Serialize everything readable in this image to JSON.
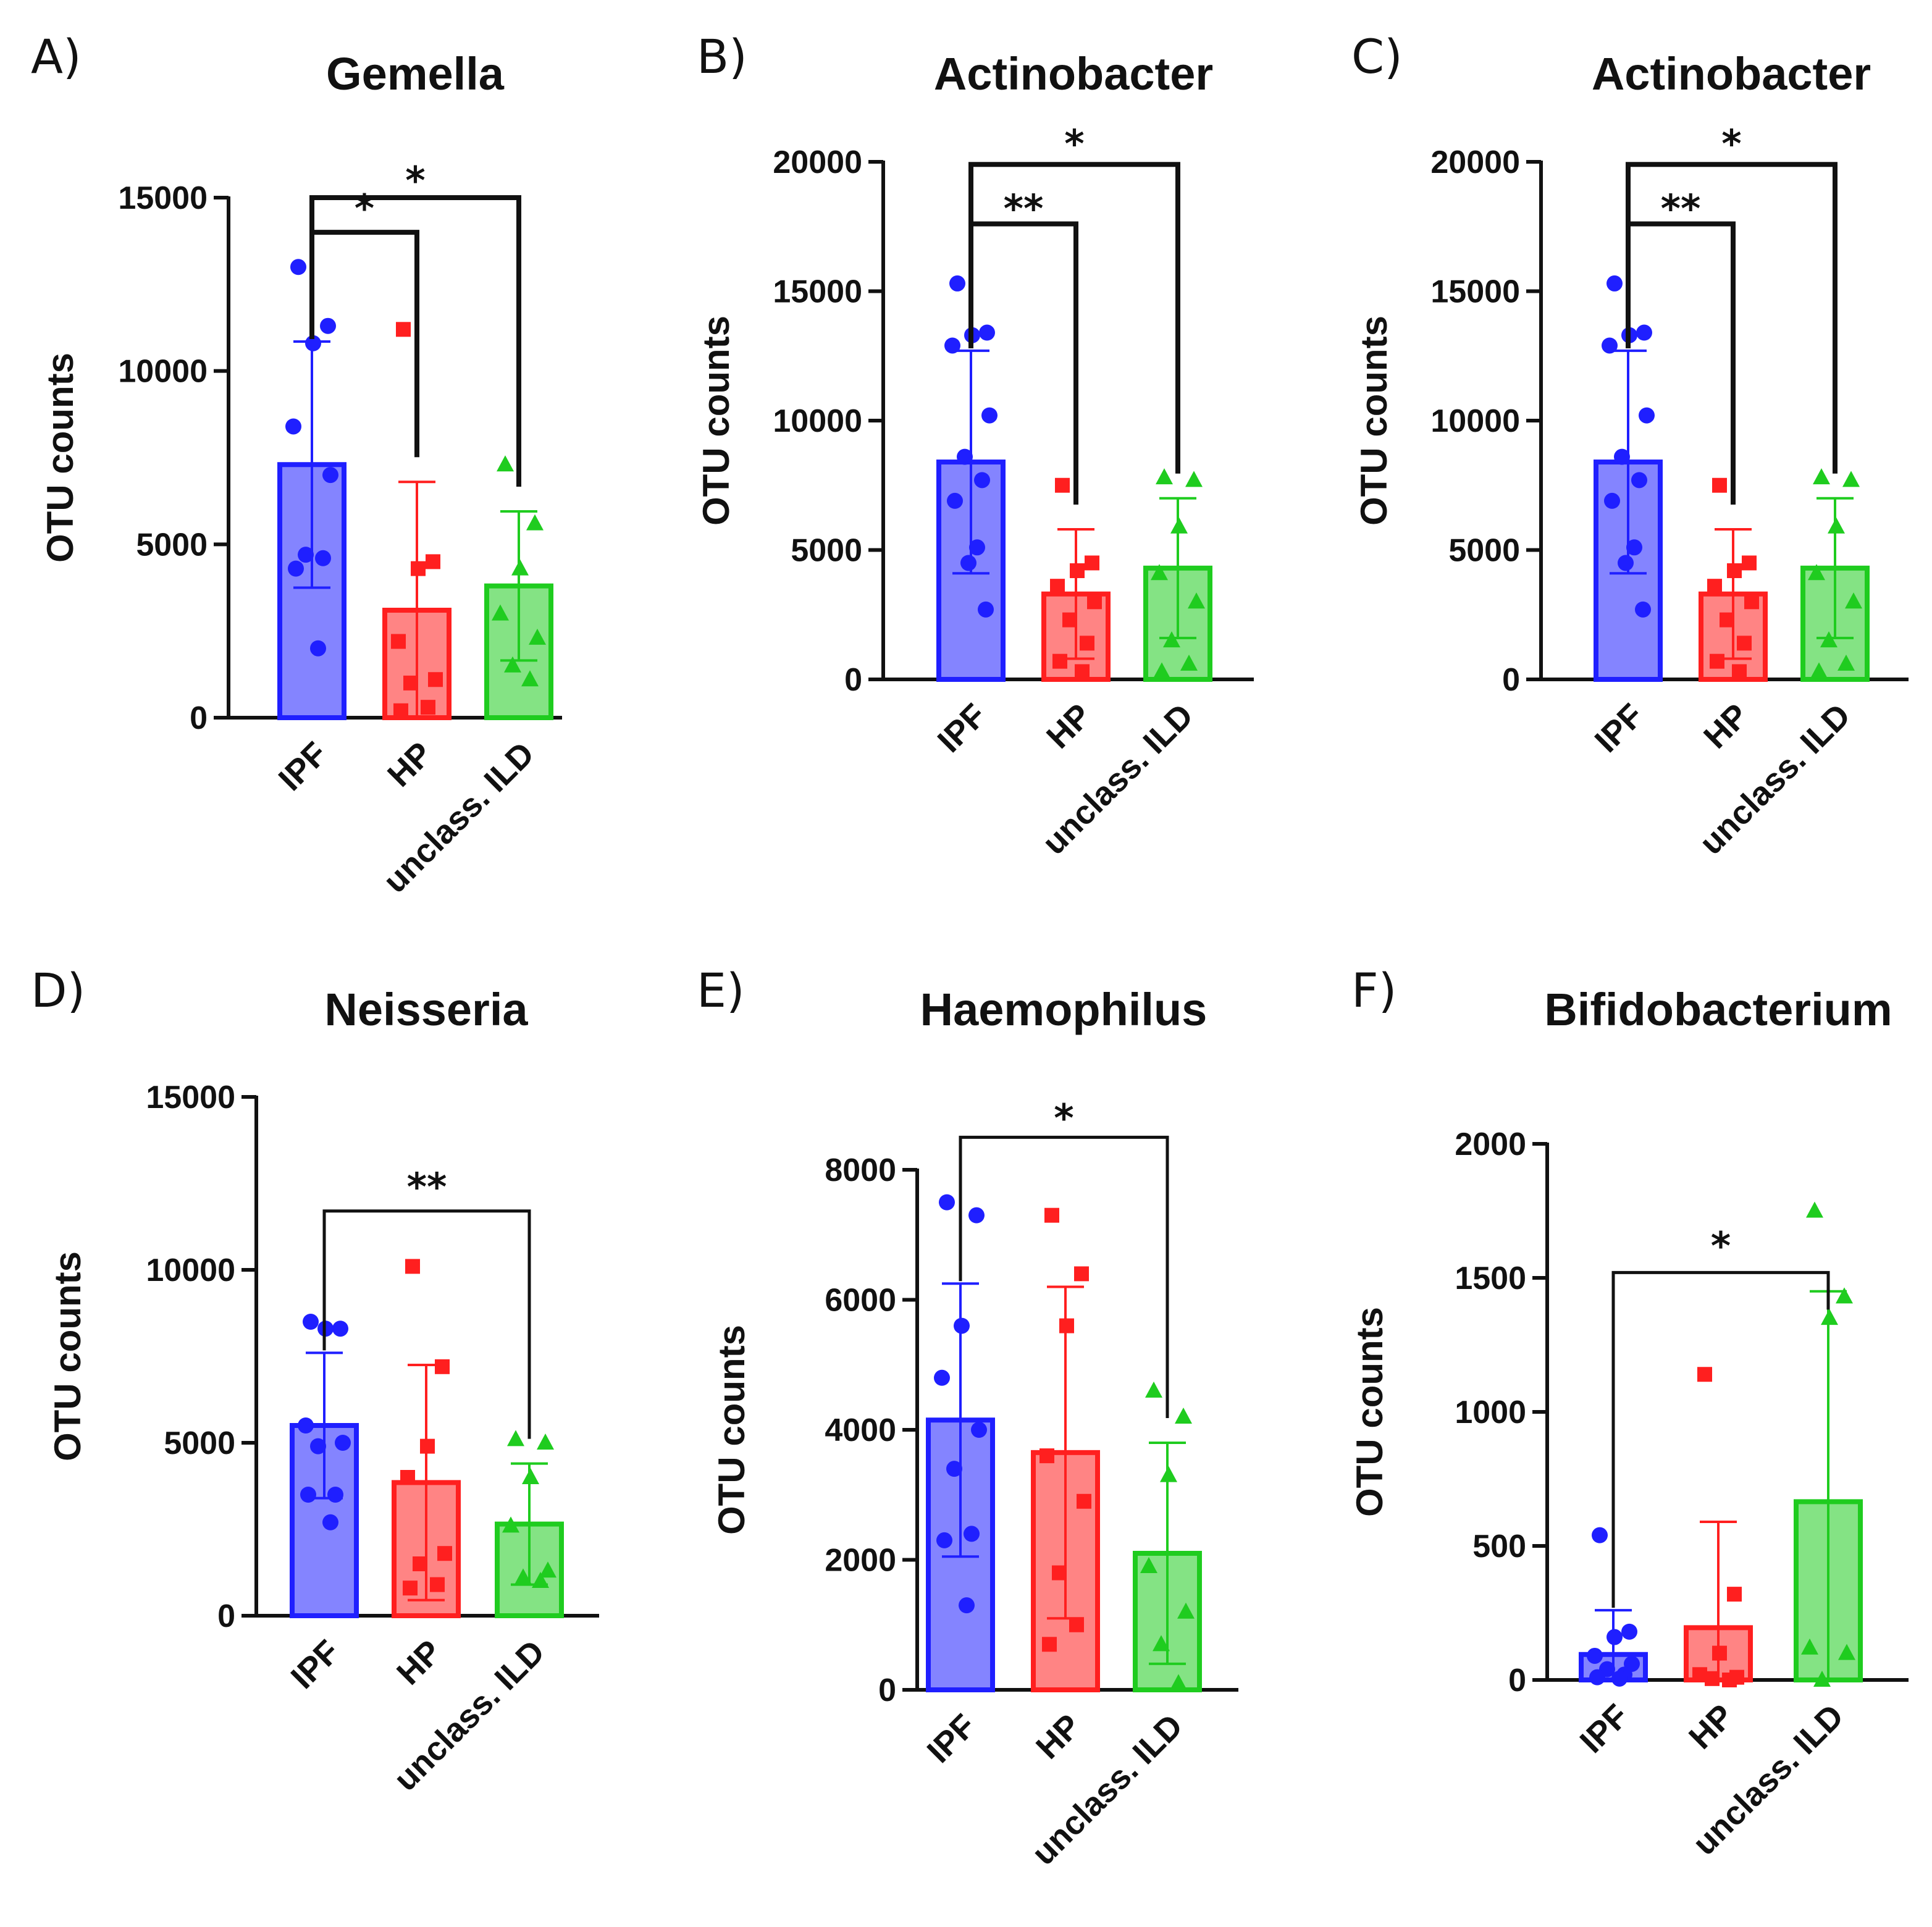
{
  "figure": {
    "colors": {
      "IPF": "#1f1fff",
      "HP": "#ff1f1f",
      "unclass. ILD": "#1fcc1f"
    },
    "marker_shapes": {
      "IPF": "circle",
      "HP": "square",
      "unclass. ILD": "triangle"
    }
  },
  "chart_data": [
    {
      "panel": "A)",
      "type": "bar",
      "title": "Gemella",
      "ylabel": "OTU counts",
      "xlabel": "",
      "categories": [
        "IPF",
        "HP",
        "unclass. ILD"
      ],
      "ylim": [
        0,
        15000
      ],
      "yticks": [
        0,
        5000,
        10000,
        15000
      ],
      "ytick_labels": [
        "0",
        "5000",
        "10000",
        "15000"
      ],
      "series": [
        {
          "name": "IPF",
          "mean": 7300,
          "sd": 3550,
          "points": [
            13000,
            11300,
            10800,
            8400,
            7000,
            4700,
            4600,
            4300,
            2000
          ]
        },
        {
          "name": "HP",
          "mean": 3100,
          "sd": 3700,
          "points": [
            11200,
            4500,
            4300,
            2200,
            1100,
            1000,
            300,
            200
          ]
        },
        {
          "name": "unclass. ILD",
          "mean": 3800,
          "sd": 2150,
          "points": [
            7300,
            5600,
            4300,
            3000,
            2300,
            1500,
            1100
          ]
        }
      ],
      "significance": [
        {
          "from": 0,
          "to": 1,
          "label": "*",
          "ystart": 14500,
          "ybracket": 14000,
          "label_y": 14700
        },
        {
          "from": 0,
          "to": 2,
          "label": "*",
          "ystart": 14800,
          "ybracket": 15000,
          "label_y": 15500
        }
      ]
    },
    {
      "panel": "B)",
      "type": "bar",
      "title": "Actinobacter",
      "ylabel": "OTU counts",
      "xlabel": "",
      "categories": [
        "IPF",
        "HP",
        "unclass. ILD"
      ],
      "ylim": [
        0,
        20000
      ],
      "yticks": [
        0,
        5000,
        10000,
        15000,
        20000
      ],
      "ytick_labels": [
        "0",
        "5000",
        "10000",
        "15000",
        "20000"
      ],
      "series": [
        {
          "name": "IPF",
          "mean": 8400,
          "sd": 4300,
          "points": [
            15300,
            13400,
            13300,
            12900,
            10200,
            8600,
            7700,
            6900,
            5100,
            4500,
            2700
          ]
        },
        {
          "name": "HP",
          "mean": 3300,
          "sd": 2500,
          "points": [
            7500,
            4500,
            4200,
            3600,
            3000,
            2300,
            1400,
            700,
            300
          ]
        },
        {
          "name": "unclass. ILD",
          "mean": 4300,
          "sd": 2700,
          "points": [
            7800,
            7700,
            5900,
            4100,
            3000,
            1500,
            600,
            300
          ]
        }
      ],
      "significance": [
        {
          "from": 0,
          "to": 1,
          "label": "**",
          "ystart": 17600,
          "ybracket": 17600,
          "label_y": 18200
        },
        {
          "from": 0,
          "to": 2,
          "label": "*",
          "ystart": 19900,
          "ybracket": 19900,
          "label_y": 20700
        }
      ]
    },
    {
      "panel": "C)",
      "type": "bar",
      "title": "Actinobacter",
      "ylabel": "OTU counts",
      "xlabel": "",
      "categories": [
        "IPF",
        "HP",
        "unclass. ILD"
      ],
      "ylim": [
        0,
        20000
      ],
      "yticks": [
        0,
        5000,
        10000,
        15000,
        20000
      ],
      "ytick_labels": [
        "0",
        "5000",
        "10000",
        "15000",
        "20000"
      ],
      "series": [
        {
          "name": "IPF",
          "mean": 8400,
          "sd": 4300,
          "points": [
            15300,
            13400,
            13300,
            12900,
            10200,
            8600,
            7700,
            6900,
            5100,
            4500,
            2700
          ]
        },
        {
          "name": "HP",
          "mean": 3300,
          "sd": 2500,
          "points": [
            7500,
            4500,
            4200,
            3600,
            3000,
            2300,
            1400,
            700,
            300
          ]
        },
        {
          "name": "unclass. ILD",
          "mean": 4300,
          "sd": 2700,
          "points": [
            7800,
            7700,
            5900,
            4100,
            3000,
            1500,
            600,
            300
          ]
        }
      ],
      "significance": [
        {
          "from": 0,
          "to": 1,
          "label": "**",
          "ystart": 17600,
          "ybracket": 17600,
          "label_y": 18200
        },
        {
          "from": 0,
          "to": 2,
          "label": "*",
          "ystart": 19900,
          "ybracket": 19900,
          "label_y": 20700
        }
      ]
    },
    {
      "panel": "D)",
      "type": "bar",
      "title": "Neisseria",
      "ylabel": "OTU counts",
      "xlabel": "",
      "categories": [
        "IPF",
        "HP",
        "unclass. ILD"
      ],
      "ylim": [
        0,
        15000
      ],
      "yticks": [
        0,
        5000,
        10000,
        15000
      ],
      "ytick_labels": [
        "0",
        "5000",
        "10000",
        "15000"
      ],
      "series": [
        {
          "name": "IPF",
          "mean": 5500,
          "sd": 2100,
          "points": [
            8500,
            8300,
            8300,
            5500,
            5000,
            4900,
            3500,
            3500,
            2700
          ]
        },
        {
          "name": "HP",
          "mean": 3850,
          "sd": 3400,
          "points": [
            10100,
            7200,
            4900,
            4000,
            1800,
            1500,
            900,
            800
          ]
        },
        {
          "name": "unclass. ILD",
          "mean": 2650,
          "sd": 1750,
          "points": [
            5100,
            5000,
            4000,
            2600,
            1300,
            1100,
            1000
          ]
        }
      ],
      "significance": [
        {
          "from": 0,
          "to": 2,
          "label": "**",
          "ystart": 11700,
          "ybracket": 11700,
          "label_y": 12400
        }
      ]
    },
    {
      "panel": "E)",
      "type": "bar",
      "title": "Haemophilus",
      "ylabel": "OTU counts",
      "xlabel": "",
      "categories": [
        "IPF",
        "HP",
        "unclass. ILD"
      ],
      "ylim": [
        0,
        8000
      ],
      "yticks": [
        0,
        2000,
        4000,
        6000,
        8000
      ],
      "ytick_labels": [
        "0",
        "2000",
        "4000",
        "6000",
        "8000"
      ],
      "series": [
        {
          "name": "IPF",
          "mean": 4150,
          "sd": 2100,
          "points": [
            7500,
            7300,
            5600,
            4800,
            4000,
            3400,
            2400,
            2300,
            1300
          ]
        },
        {
          "name": "HP",
          "mean": 3650,
          "sd": 2550,
          "points": [
            7300,
            6400,
            5600,
            3600,
            2900,
            1800,
            1000,
            700
          ]
        },
        {
          "name": "unclass. ILD",
          "mean": 2100,
          "sd": 1700,
          "points": [
            4600,
            4200,
            3300,
            1900,
            1200,
            700,
            100
          ]
        }
      ],
      "significance": [
        {
          "from": 0,
          "to": 2,
          "label": "*",
          "ystart": 8500,
          "ybracket": 8500,
          "label_y": 8800
        }
      ]
    },
    {
      "panel": "F)",
      "type": "bar",
      "title": "Bifidobacterium",
      "ylabel": "OTU counts",
      "xlabel": "",
      "categories": [
        "IPF",
        "HP",
        "unclass. ILD"
      ],
      "ylim": [
        0,
        2000
      ],
      "yticks": [
        0,
        500,
        1000,
        1500,
        2000
      ],
      "ytick_labels": [
        "0",
        "500",
        "1000",
        "1500",
        "2000"
      ],
      "series": [
        {
          "name": "IPF",
          "mean": 95,
          "sd": 165,
          "points": [
            540,
            180,
            160,
            90,
            60,
            40,
            20,
            10,
            5
          ]
        },
        {
          "name": "HP",
          "mean": 195,
          "sd": 395,
          "points": [
            1140,
            320,
            100,
            20,
            10,
            5,
            0
          ]
        },
        {
          "name": "unclass. ILD",
          "mean": 665,
          "sd": 785,
          "points": [
            1750,
            1430,
            1350,
            120,
            100,
            0
          ]
        }
      ],
      "significance": [
        {
          "from": 0,
          "to": 2,
          "label": "*",
          "ystart": 1520,
          "ybracket": 1520,
          "label_y": 1620
        }
      ]
    }
  ]
}
